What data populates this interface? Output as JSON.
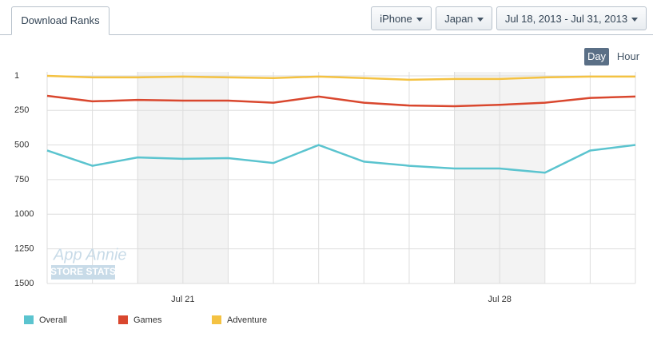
{
  "toolbar": {
    "tab": "Download Ranks",
    "device": "iPhone",
    "country": "Japan",
    "date_range": "Jul 18, 2013 - Jul 31, 2013",
    "day": "Day",
    "hour": "Hour"
  },
  "watermark": {
    "line1": "App Annie",
    "line2": "STORE STATS"
  },
  "chart_data": {
    "type": "line",
    "categories": [
      null,
      null,
      null,
      "Jul 21",
      null,
      null,
      null,
      null,
      null,
      null,
      "Jul 28",
      null,
      null,
      null
    ],
    "series": [
      {
        "name": "Overall",
        "color": "#5bc4cf",
        "values": [
          540,
          650,
          590,
          600,
          595,
          630,
          500,
          620,
          650,
          670,
          670,
          700,
          540,
          500
        ]
      },
      {
        "name": "Games",
        "color": "#d9472e",
        "values": [
          145,
          185,
          175,
          180,
          180,
          195,
          150,
          195,
          215,
          220,
          210,
          195,
          160,
          150
        ]
      },
      {
        "name": "Adventure",
        "color": "#f4c242",
        "values": [
          1,
          12,
          12,
          6,
          12,
          17,
          6,
          17,
          29,
          23,
          23,
          12,
          6,
          6
        ]
      }
    ],
    "ylim": [
      1,
      1500
    ],
    "yticks": [
      1,
      250,
      500,
      750,
      1000,
      1250,
      1500
    ],
    "y_inverted": true,
    "grid": true
  }
}
